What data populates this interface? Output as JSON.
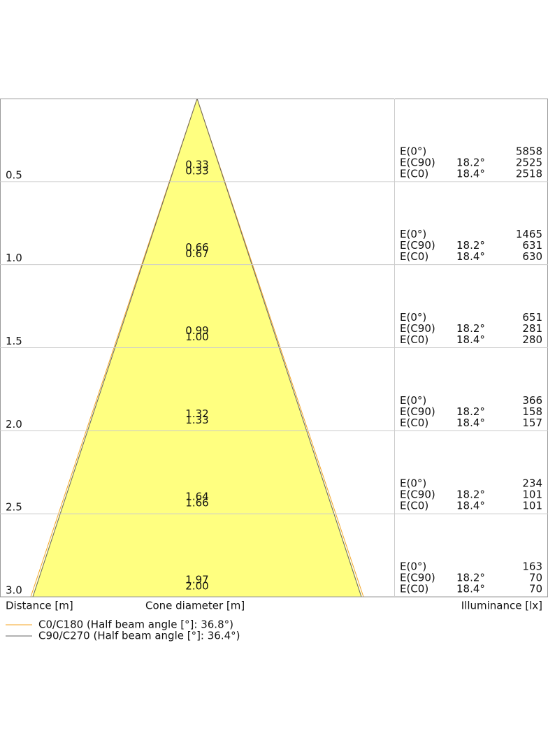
{
  "rows": [
    {
      "distance": "0.5",
      "cone": [
        "0.33",
        "0.33"
      ],
      "illuminance": [
        {
          "label": "E(0°)",
          "value": "5858"
        },
        {
          "label": "E(C90)",
          "angle": "18.2°",
          "value": "2525"
        },
        {
          "label": "E(C0)",
          "angle": "18.4°",
          "value": "2518"
        }
      ]
    },
    {
      "distance": "1.0",
      "cone": [
        "0.66",
        "0.67"
      ],
      "illuminance": [
        {
          "label": "E(0°)",
          "value": "1465"
        },
        {
          "label": "E(C90)",
          "angle": "18.2°",
          "value": "631"
        },
        {
          "label": "E(C0)",
          "angle": "18.4°",
          "value": "630"
        }
      ]
    },
    {
      "distance": "1.5",
      "cone": [
        "0.99",
        "1.00"
      ],
      "illuminance": [
        {
          "label": "E(0°)",
          "value": "651"
        },
        {
          "label": "E(C90)",
          "angle": "18.2°",
          "value": "281"
        },
        {
          "label": "E(C0)",
          "angle": "18.4°",
          "value": "280"
        }
      ]
    },
    {
      "distance": "2.0",
      "cone": [
        "1.32",
        "1.33"
      ],
      "illuminance": [
        {
          "label": "E(0°)",
          "value": "366"
        },
        {
          "label": "E(C90)",
          "angle": "18.2°",
          "value": "158"
        },
        {
          "label": "E(C0)",
          "angle": "18.4°",
          "value": "157"
        }
      ]
    },
    {
      "distance": "2.5",
      "cone": [
        "1.64",
        "1.66"
      ],
      "illuminance": [
        {
          "label": "E(0°)",
          "value": "234"
        },
        {
          "label": "E(C90)",
          "angle": "18.2°",
          "value": "101"
        },
        {
          "label": "E(C0)",
          "angle": "18.4°",
          "value": "101"
        }
      ]
    },
    {
      "distance": "3.0",
      "cone": [
        "1.97",
        "2.00"
      ],
      "illuminance": [
        {
          "label": "E(0°)",
          "value": "163"
        },
        {
          "label": "E(C90)",
          "angle": "18.2°",
          "value": "70"
        },
        {
          "label": "E(C0)",
          "angle": "18.4°",
          "value": "70"
        }
      ]
    }
  ],
  "footer": {
    "distance": "Distance [m]",
    "cone": "Cone diameter [m]",
    "illuminance": "Illuminance [lx]"
  },
  "legend": [
    {
      "label": "C0/C180 (Half beam angle [°]: 36.8°)",
      "color": "#f5a623"
    },
    {
      "label": "C90/C270 (Half beam angle [°]: 36.4°)",
      "color": "#666666"
    }
  ]
}
